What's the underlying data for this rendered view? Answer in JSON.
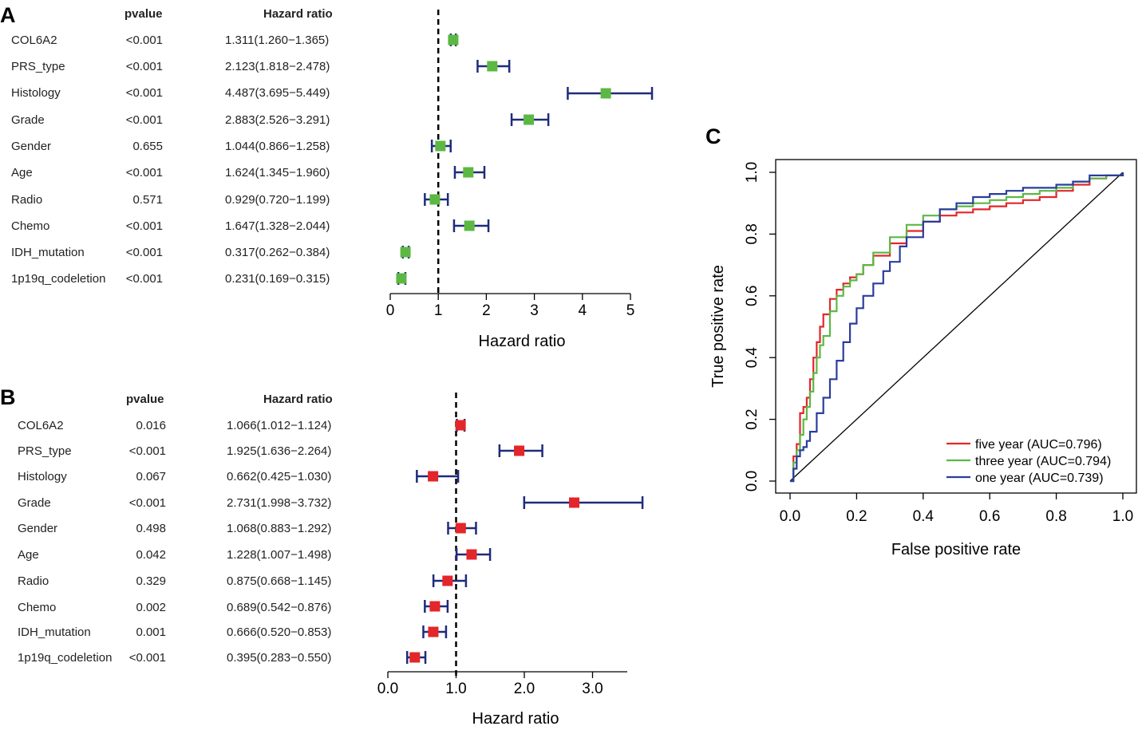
{
  "panels": {
    "a": "A",
    "b": "B",
    "c": "C"
  },
  "colors": {
    "green": "#5cb843",
    "red": "#e3262a",
    "ci": "#1f2b7a",
    "ref": "#000000",
    "roc_five": "#e3262a",
    "roc_three": "#5cb843",
    "roc_one": "#2a3d9c"
  },
  "chart_data": [
    {
      "type": "forest",
      "panel": "A",
      "headers": {
        "pvalue": "pvalue",
        "hr": "Hazard ratio"
      },
      "xlabel": "Hazard ratio",
      "xticks": [
        0,
        1,
        2,
        3,
        4,
        5
      ],
      "xtick_labels": [
        "0",
        "1",
        "2",
        "3",
        "4",
        "5"
      ],
      "xlim": [
        0,
        5
      ],
      "reference": 1,
      "rows": [
        {
          "name": "COL6A2",
          "pvalue": "<0.001",
          "hr_text": "1.311(1.260−1.365)",
          "hr": 1.311,
          "lo": 1.26,
          "hi": 1.365
        },
        {
          "name": "PRS_type",
          "pvalue": "<0.001",
          "hr_text": "2.123(1.818−2.478)",
          "hr": 2.123,
          "lo": 1.818,
          "hi": 2.478
        },
        {
          "name": "Histology",
          "pvalue": "<0.001",
          "hr_text": "4.487(3.695−5.449)",
          "hr": 4.487,
          "lo": 3.695,
          "hi": 5.449
        },
        {
          "name": "Grade",
          "pvalue": "<0.001",
          "hr_text": "2.883(2.526−3.291)",
          "hr": 2.883,
          "lo": 2.526,
          "hi": 3.291
        },
        {
          "name": "Gender",
          "pvalue": "0.655",
          "hr_text": "1.044(0.866−1.258)",
          "hr": 1.044,
          "lo": 0.866,
          "hi": 1.258
        },
        {
          "name": "Age",
          "pvalue": "<0.001",
          "hr_text": "1.624(1.345−1.960)",
          "hr": 1.624,
          "lo": 1.345,
          "hi": 1.96
        },
        {
          "name": "Radio",
          "pvalue": "0.571",
          "hr_text": "0.929(0.720−1.199)",
          "hr": 0.929,
          "lo": 0.72,
          "hi": 1.199
        },
        {
          "name": "Chemo",
          "pvalue": "<0.001",
          "hr_text": "1.647(1.328−2.044)",
          "hr": 1.647,
          "lo": 1.328,
          "hi": 2.044
        },
        {
          "name": "IDH_mutation",
          "pvalue": "<0.001",
          "hr_text": "0.317(0.262−0.384)",
          "hr": 0.317,
          "lo": 0.262,
          "hi": 0.384
        },
        {
          "name": "1p19q_codeletion",
          "pvalue": "<0.001",
          "hr_text": "0.231(0.169−0.315)",
          "hr": 0.231,
          "lo": 0.169,
          "hi": 0.315
        }
      ]
    },
    {
      "type": "forest",
      "panel": "B",
      "headers": {
        "pvalue": "pvalue",
        "hr": "Hazard ratio"
      },
      "xlabel": "Hazard ratio",
      "xticks": [
        0,
        1,
        2,
        3
      ],
      "xtick_labels": [
        "0.0",
        "1.0",
        "2.0",
        "3.0"
      ],
      "xlim": [
        0,
        3.5
      ],
      "reference": 1,
      "rows": [
        {
          "name": "COL6A2",
          "pvalue": "0.016",
          "hr_text": "1.066(1.012−1.124)",
          "hr": 1.066,
          "lo": 1.012,
          "hi": 1.124
        },
        {
          "name": "PRS_type",
          "pvalue": "<0.001",
          "hr_text": "1.925(1.636−2.264)",
          "hr": 1.925,
          "lo": 1.636,
          "hi": 2.264
        },
        {
          "name": "Histology",
          "pvalue": "0.067",
          "hr_text": "0.662(0.425−1.030)",
          "hr": 0.662,
          "lo": 0.425,
          "hi": 1.03
        },
        {
          "name": "Grade",
          "pvalue": "<0.001",
          "hr_text": "2.731(1.998−3.732)",
          "hr": 2.731,
          "lo": 1.998,
          "hi": 3.732
        },
        {
          "name": "Gender",
          "pvalue": "0.498",
          "hr_text": "1.068(0.883−1.292)",
          "hr": 1.068,
          "lo": 0.883,
          "hi": 1.292
        },
        {
          "name": "Age",
          "pvalue": "0.042",
          "hr_text": "1.228(1.007−1.498)",
          "hr": 1.228,
          "lo": 1.007,
          "hi": 1.498
        },
        {
          "name": "Radio",
          "pvalue": "0.329",
          "hr_text": "0.875(0.668−1.145)",
          "hr": 0.875,
          "lo": 0.668,
          "hi": 1.145
        },
        {
          "name": "Chemo",
          "pvalue": "0.002",
          "hr_text": "0.689(0.542−0.876)",
          "hr": 0.689,
          "lo": 0.542,
          "hi": 0.876
        },
        {
          "name": "IDH_mutation",
          "pvalue": "0.001",
          "hr_text": "0.666(0.520−0.853)",
          "hr": 0.666,
          "lo": 0.52,
          "hi": 0.853
        },
        {
          "name": "1p19q_codeletion",
          "pvalue": "<0.001",
          "hr_text": "0.395(0.283−0.550)",
          "hr": 0.395,
          "lo": 0.283,
          "hi": 0.55
        }
      ]
    },
    {
      "type": "line",
      "panel": "C",
      "title": "",
      "xlabel": "False positive rate",
      "ylabel": "True positive rate",
      "xlim": [
        0,
        1
      ],
      "ylim": [
        0,
        1
      ],
      "xticks": [
        "0.0",
        "0.2",
        "0.4",
        "0.6",
        "0.8",
        "1.0"
      ],
      "yticks": [
        "0.0",
        "0.2",
        "0.4",
        "0.6",
        "0.8",
        "1.0"
      ],
      "legend_position": "bottom-right",
      "diagonal": true,
      "series": [
        {
          "name": "five year",
          "label": "five year (AUC=0.796)",
          "color_key": "roc_five",
          "x": [
            0,
            0.01,
            0.02,
            0.03,
            0.04,
            0.05,
            0.06,
            0.07,
            0.08,
            0.09,
            0.1,
            0.12,
            0.14,
            0.16,
            0.18,
            0.2,
            0.22,
            0.25,
            0.3,
            0.35,
            0.4,
            0.45,
            0.5,
            0.55,
            0.6,
            0.65,
            0.7,
            0.75,
            0.8,
            0.85,
            0.9,
            0.95,
            1.0
          ],
          "y": [
            0,
            0.08,
            0.12,
            0.22,
            0.24,
            0.27,
            0.33,
            0.4,
            0.45,
            0.5,
            0.54,
            0.59,
            0.62,
            0.64,
            0.66,
            0.67,
            0.7,
            0.73,
            0.77,
            0.81,
            0.84,
            0.86,
            0.87,
            0.88,
            0.89,
            0.9,
            0.91,
            0.92,
            0.94,
            0.96,
            0.98,
            0.99,
            1.0
          ]
        },
        {
          "name": "three year",
          "label": "three year (AUC=0.794)",
          "color_key": "roc_three",
          "x": [
            0,
            0.01,
            0.02,
            0.03,
            0.04,
            0.05,
            0.06,
            0.07,
            0.08,
            0.09,
            0.1,
            0.12,
            0.14,
            0.16,
            0.18,
            0.2,
            0.22,
            0.25,
            0.3,
            0.35,
            0.4,
            0.45,
            0.5,
            0.55,
            0.6,
            0.65,
            0.7,
            0.75,
            0.8,
            0.85,
            0.9,
            0.95,
            1.0
          ],
          "y": [
            0,
            0.06,
            0.1,
            0.15,
            0.2,
            0.24,
            0.29,
            0.35,
            0.4,
            0.44,
            0.47,
            0.55,
            0.6,
            0.63,
            0.65,
            0.67,
            0.7,
            0.74,
            0.79,
            0.83,
            0.86,
            0.88,
            0.89,
            0.9,
            0.91,
            0.92,
            0.93,
            0.94,
            0.95,
            0.97,
            0.98,
            0.99,
            1.0
          ]
        },
        {
          "name": "one year",
          "label": "one year (AUC=0.739)",
          "color_key": "roc_one",
          "x": [
            0,
            0.01,
            0.02,
            0.03,
            0.04,
            0.05,
            0.06,
            0.08,
            0.1,
            0.12,
            0.14,
            0.16,
            0.18,
            0.2,
            0.22,
            0.25,
            0.28,
            0.3,
            0.33,
            0.35,
            0.4,
            0.45,
            0.5,
            0.55,
            0.6,
            0.65,
            0.7,
            0.75,
            0.8,
            0.85,
            0.9,
            0.95,
            1.0
          ],
          "y": [
            0,
            0.04,
            0.08,
            0.1,
            0.11,
            0.13,
            0.16,
            0.22,
            0.27,
            0.33,
            0.39,
            0.45,
            0.51,
            0.56,
            0.6,
            0.64,
            0.68,
            0.71,
            0.76,
            0.79,
            0.84,
            0.88,
            0.9,
            0.92,
            0.93,
            0.94,
            0.95,
            0.95,
            0.96,
            0.97,
            0.99,
            0.99,
            1.0
          ]
        }
      ]
    }
  ]
}
